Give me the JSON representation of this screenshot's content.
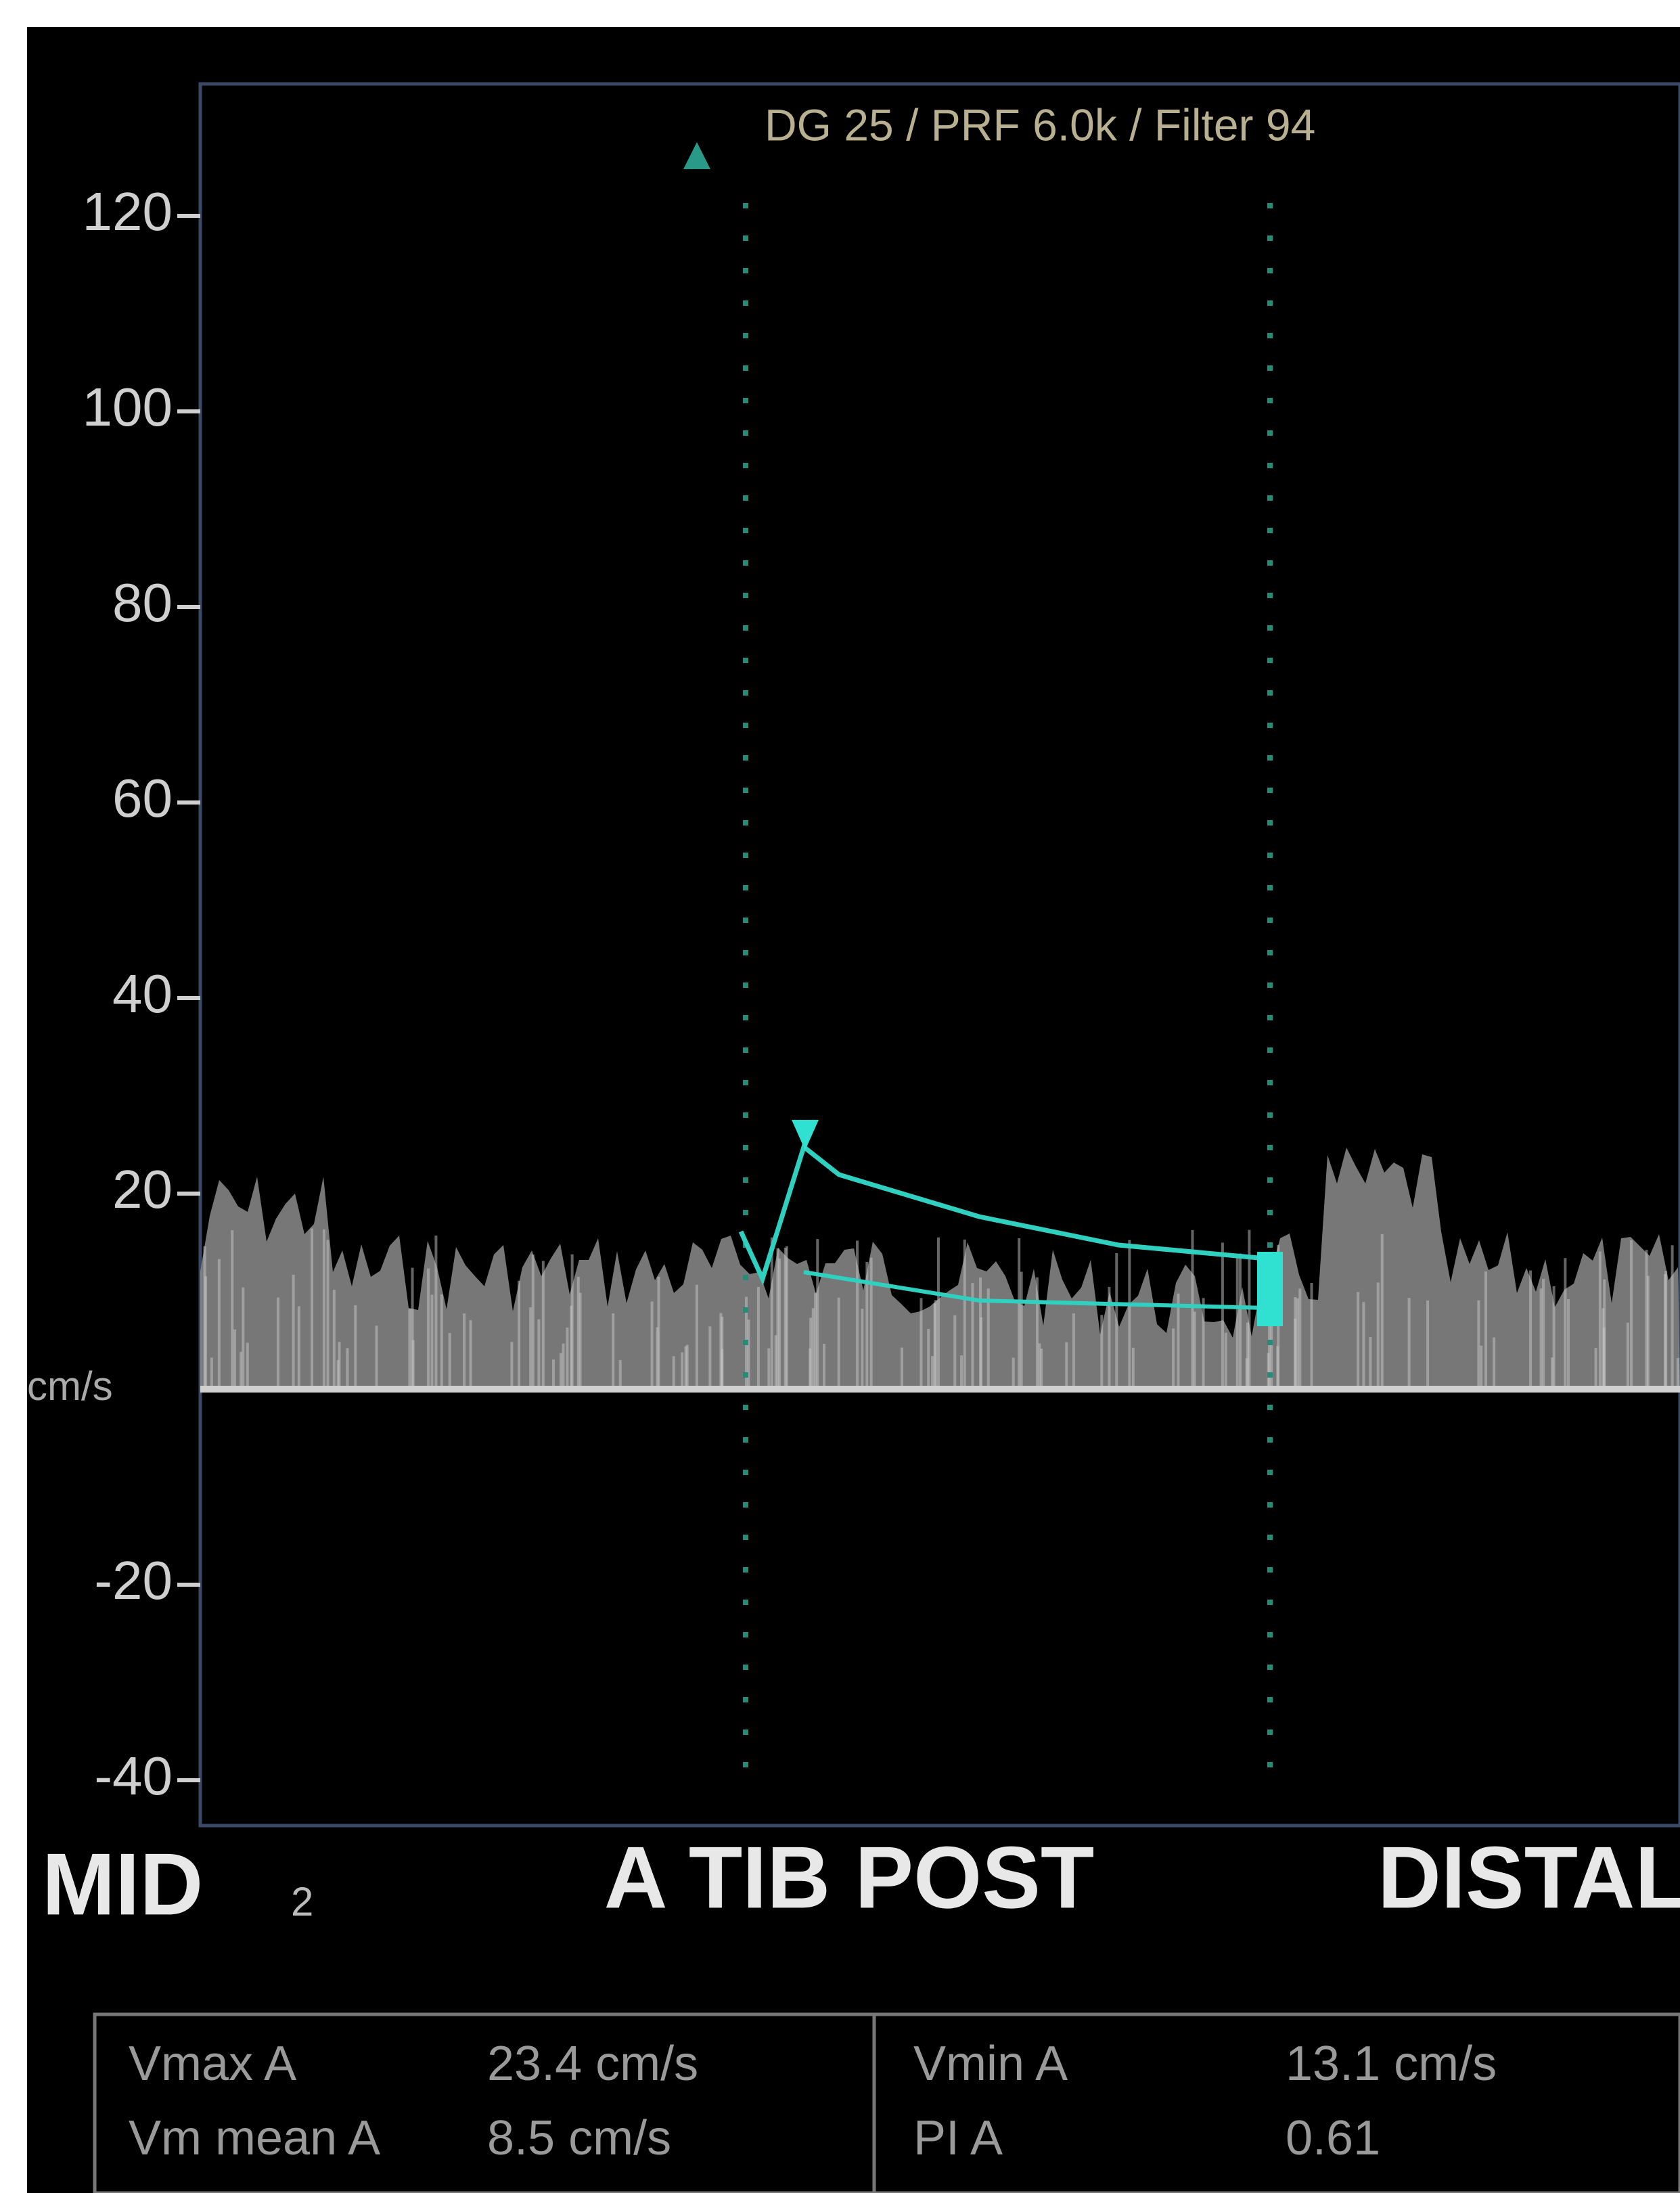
{
  "header": {
    "settings": "DG 25 /   PRF 6.0k   / Filter 94"
  },
  "axis": {
    "unit": "cm/s",
    "ticks": [
      120,
      100,
      80,
      60,
      40,
      20,
      -20,
      -40
    ]
  },
  "labels": {
    "left": "MID",
    "marker": "2",
    "vessel": "A TIB POST",
    "right": "DISTAL"
  },
  "table": {
    "rows": [
      [
        "Vmax  A",
        "23.4  cm/s",
        "Vmin  A",
        "13.1  cm/s"
      ],
      [
        "Vm  mean  A",
        "8.5  cm/s",
        "PI  A",
        "0.61"
      ]
    ]
  }
}
